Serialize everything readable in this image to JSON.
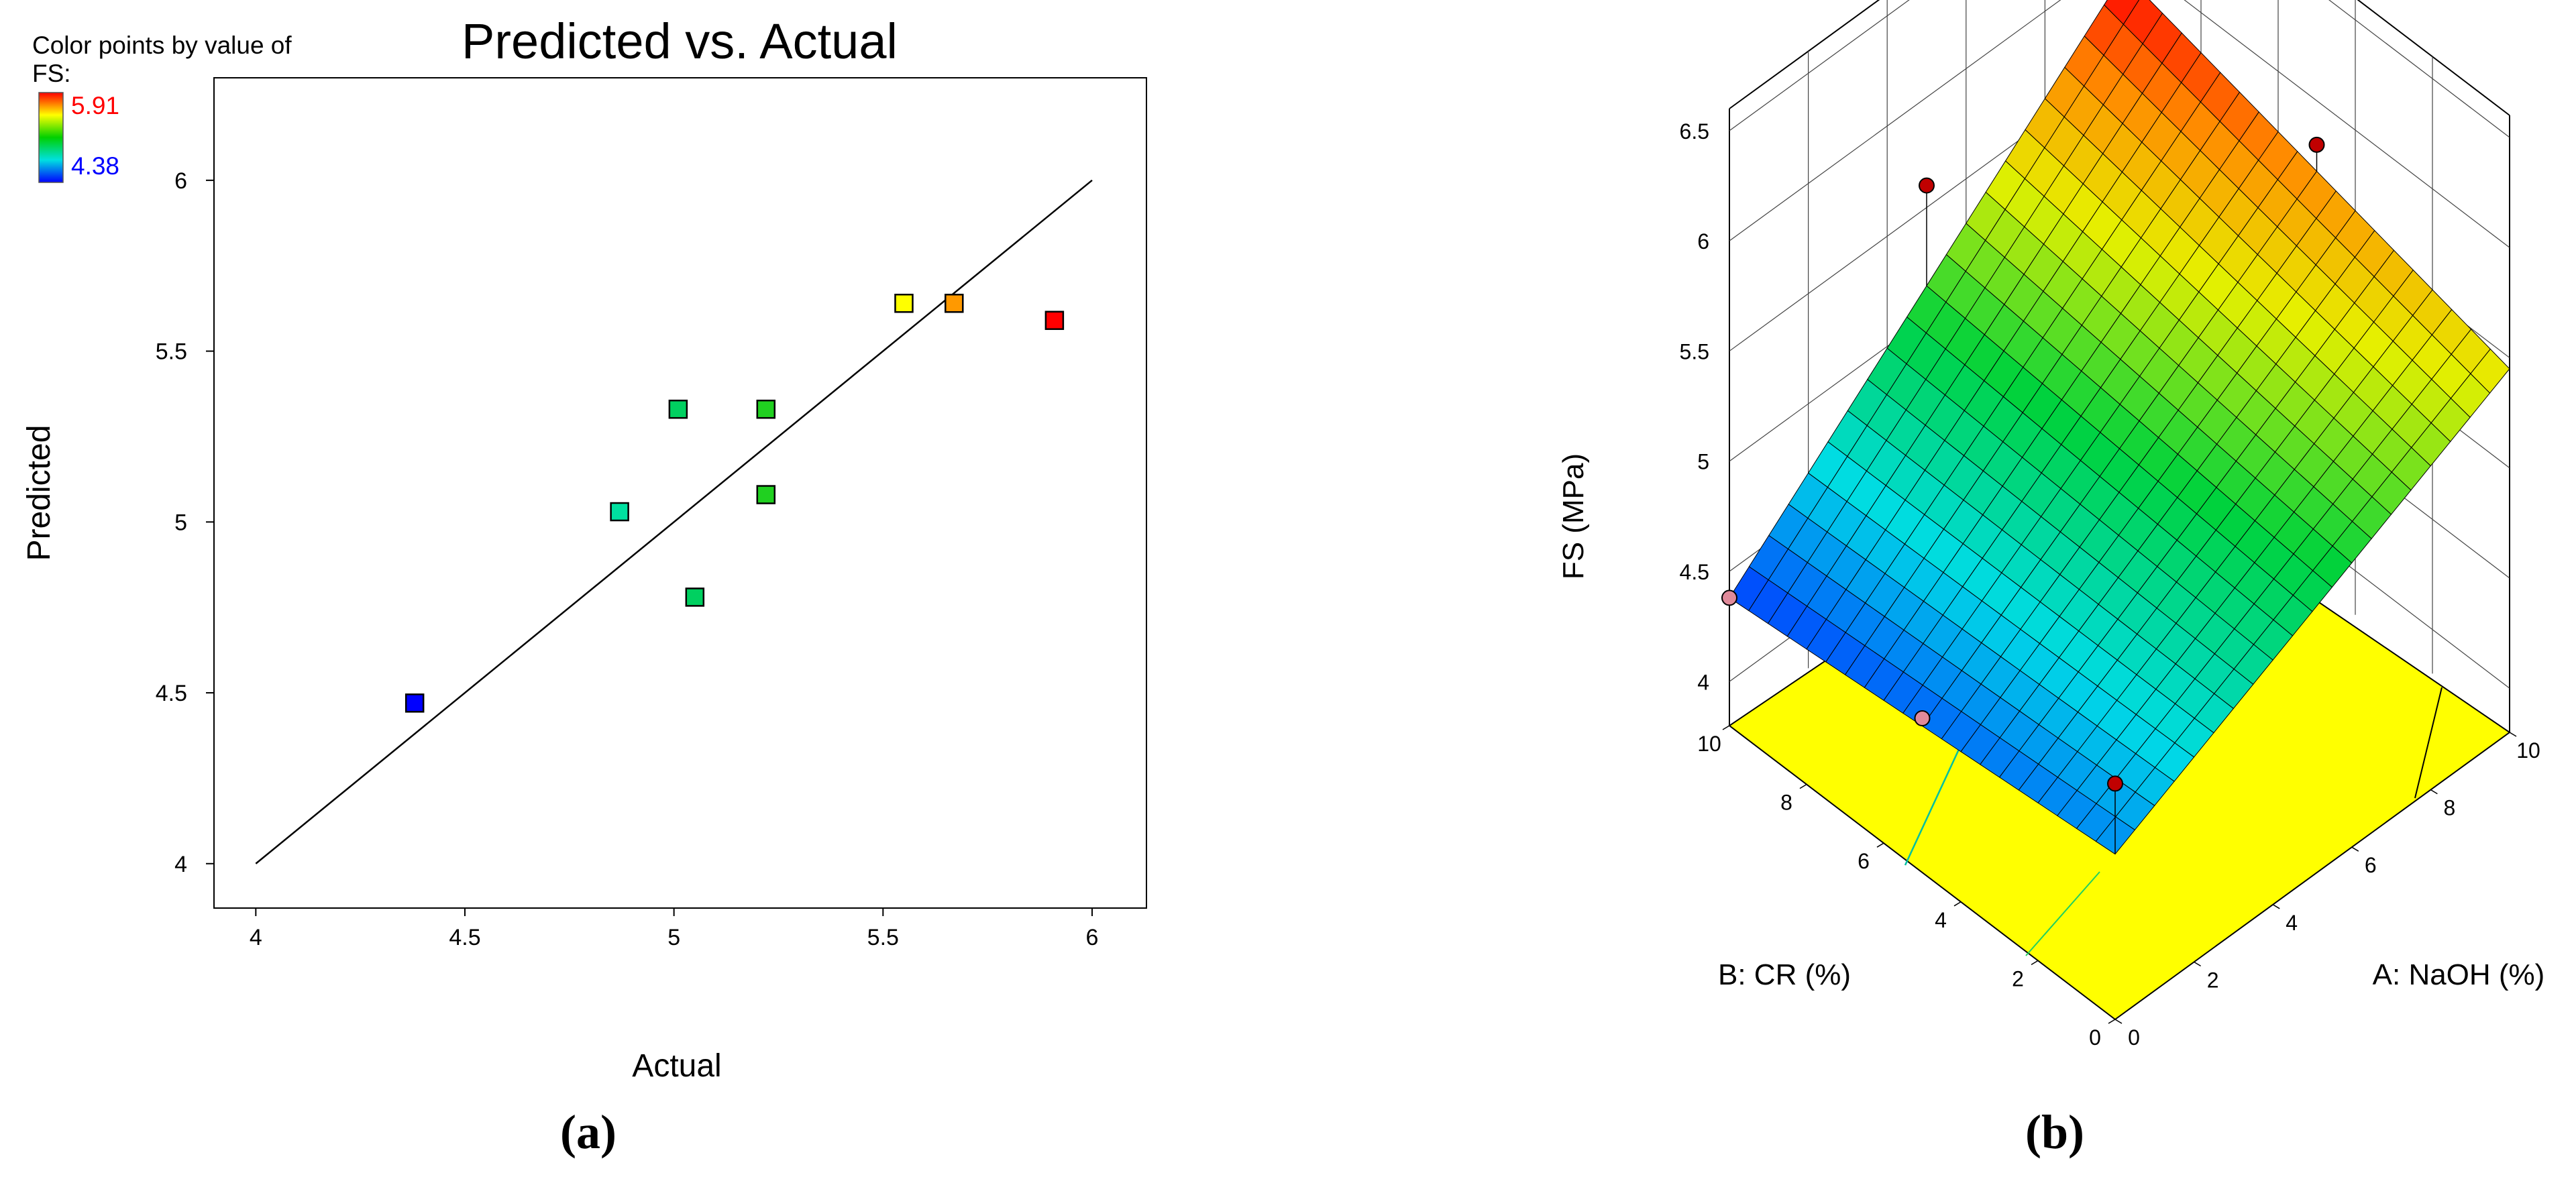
{
  "panel_a": {
    "caption": "(a)",
    "legend": {
      "title_line1": "Color points by value of",
      "title_line2": "FS:",
      "max_label": "5.91",
      "min_label": "4.38",
      "max_color": "#ff0000",
      "min_color": "#0000ff"
    }
  },
  "panel_b": {
    "caption": "(b)"
  },
  "chart_data": [
    {
      "type": "scatter",
      "title": "Predicted vs. Actual",
      "xlabel": "Actual",
      "ylabel": "Predicted",
      "xlim": [
        3.9,
        6.13
      ],
      "ylim": [
        3.87,
        6.3
      ],
      "x_ticks": [
        "4",
        "4.5",
        "5",
        "5.5",
        "6"
      ],
      "y_ticks": [
        "4",
        "4.5",
        "5",
        "5.5",
        "6"
      ],
      "reference_line": {
        "x": [
          4,
          6
        ],
        "y": [
          4,
          6
        ]
      },
      "points": [
        {
          "x": 4.38,
          "y": 4.47,
          "color": "#0000ff"
        },
        {
          "x": 4.87,
          "y": 5.03,
          "color": "#00e0a0"
        },
        {
          "x": 5.01,
          "y": 5.33,
          "color": "#00d060"
        },
        {
          "x": 5.05,
          "y": 4.78,
          "color": "#00d060"
        },
        {
          "x": 5.22,
          "y": 5.33,
          "color": "#20d020"
        },
        {
          "x": 5.22,
          "y": 5.08,
          "color": "#20d020"
        },
        {
          "x": 5.55,
          "y": 5.64,
          "color": "#ffff00"
        },
        {
          "x": 5.67,
          "y": 5.64,
          "color": "#ff9900"
        },
        {
          "x": 5.91,
          "y": 5.59,
          "color": "#ff0000"
        }
      ],
      "grid": false
    },
    {
      "type": "surface",
      "xlabel": "A: NaOH (%)",
      "ylabel": "B: CR (%)",
      "zlabel": "FS (MPa)",
      "x_ticks": [
        "0",
        "2",
        "4",
        "6",
        "8",
        "10"
      ],
      "y_ticks": [
        "0",
        "2",
        "4",
        "6",
        "8",
        "10"
      ],
      "z_ticks": [
        "4",
        "4.5",
        "5",
        "5.5",
        "6",
        "6.5"
      ],
      "surface_corners": {
        "a0_b0": 4.55,
        "a10_b0": 5.45,
        "a0_b10": 4.38,
        "a10_b10": 5.91
      },
      "z_range": [
        3.8,
        6.5
      ],
      "design_points": [
        {
          "a": 0,
          "b": 10,
          "fs": 4.38,
          "color": "#e08a9a"
        },
        {
          "a": 0,
          "b": 5,
          "fs": 4.5,
          "color": "#e08a9a"
        },
        {
          "a": 0,
          "b": 0,
          "fs": 4.87,
          "color": "#c00000"
        },
        {
          "a": 5,
          "b": 10,
          "fs": 5.6,
          "color": "#c00000"
        },
        {
          "a": 10,
          "b": 10,
          "fs": 6.1,
          "color": "#c00000"
        },
        {
          "a": 10,
          "b": 5,
          "fs": 5.8,
          "color": "#c00000"
        }
      ]
    }
  ]
}
